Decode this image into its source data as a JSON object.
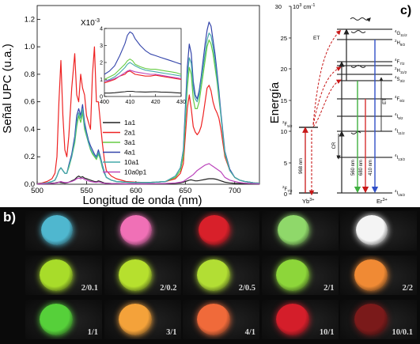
{
  "figure": {
    "panel_a": {
      "label": "a)",
      "ylabel": "Señal UPC (u.a.)",
      "xlabel": "Longitud de onda (nm)",
      "inset_multiplier": "X10",
      "inset_exponent": "-3"
    },
    "panel_b": {
      "label": "b)",
      "grid": [
        [
          {
            "ratio": "",
            "color": "#4fb7cf"
          },
          {
            "ratio": "",
            "color": "#f070b6"
          },
          {
            "ratio": "",
            "color": "#d8202a"
          },
          {
            "ratio": "",
            "color": "#8fd86a"
          },
          {
            "ratio": "",
            "color": "#f4f4f4"
          }
        ],
        [
          {
            "ratio": "2/0.1",
            "color": "#a8dc2a"
          },
          {
            "ratio": "2/0.2",
            "color": "#b6e02e"
          },
          {
            "ratio": "2/0.5",
            "color": "#b2de34"
          },
          {
            "ratio": "2/1",
            "color": "#8dd63a"
          },
          {
            "ratio": "2/2",
            "color": "#f08a34"
          }
        ],
        [
          {
            "ratio": "1/1",
            "color": "#56d03a"
          },
          {
            "ratio": "3/1",
            "color": "#f4a23a"
          },
          {
            "ratio": "4/1",
            "color": "#f06a3a"
          },
          {
            "ratio": "10/1",
            "color": "#d41e2a"
          },
          {
            "ratio": "10/0.1",
            "color": "#7a1a1a"
          }
        ]
      ]
    },
    "panel_c": {
      "label": "c)",
      "ylabel": "Energía",
      "unit_prefix": "10",
      "unit_exp": "3",
      "unit_suffix": " cm",
      "unit_suffix_exp": "-1",
      "yb_label": "Yb",
      "yb_sup": "3+",
      "er_label": "Er",
      "er_sup": "3+",
      "et_top": "ET",
      "et_side": "ET",
      "cr": "CR",
      "pump_nm": "968 nm",
      "em_560": "560 nm",
      "em_680": "680 nm",
      "em_410": "410 nm",
      "yb_levels": [
        {
          "name": "F",
          "sup": "2",
          "sub": "5/2"
        },
        {
          "name": "F",
          "sup": "2",
          "sub": "7/2"
        }
      ],
      "er_levels": [
        {
          "name": "G",
          "sup": "4",
          "sub": "11/2"
        },
        {
          "name": "H",
          "sup": "2",
          "sub": "9/2"
        },
        {
          "name": "F",
          "sup": "4",
          "sub": "7/2"
        },
        {
          "name": "H",
          "sup": "2",
          "sub": "11/2"
        },
        {
          "name": "S",
          "sup": "4",
          "sub": "3/2"
        },
        {
          "name": "F",
          "sup": "4",
          "sub": "9/2"
        },
        {
          "name": "I",
          "sup": "4",
          "sub": "9/2"
        },
        {
          "name": "I",
          "sup": "4",
          "sub": "11/2"
        },
        {
          "name": "I",
          "sup": "4",
          "sub": "13/2"
        },
        {
          "name": "I",
          "sup": "4",
          "sub": "15/2"
        }
      ]
    }
  },
  "chart_data": [
    {
      "type": "line",
      "title": "",
      "xlabel": "Longitud de onda (nm)",
      "ylabel": "Señal UPC (u.a.)",
      "xlim": [
        500,
        725
      ],
      "ylim": [
        0,
        1.3
      ],
      "xticks": [
        "500",
        "550",
        "600",
        "650",
        "700"
      ],
      "yticks": [
        "0.0",
        "0.2",
        "0.4",
        "0.6",
        "0.8",
        "1.0",
        "1.2"
      ],
      "legend_position": "right",
      "x": [
        500,
        505,
        510,
        515,
        518,
        520,
        522,
        524,
        526,
        528,
        530,
        532,
        535,
        538,
        540,
        542,
        544,
        546,
        548,
        550,
        552,
        554,
        556,
        558,
        560,
        562,
        564,
        566,
        568,
        570,
        575,
        580,
        590,
        600,
        610,
        620,
        630,
        640,
        645,
        648,
        650,
        652,
        654,
        656,
        658,
        660,
        662,
        664,
        666,
        668,
        670,
        672,
        674,
        676,
        678,
        680,
        682,
        684,
        686,
        688,
        690,
        695,
        700,
        705,
        710,
        715,
        720,
        725
      ],
      "series": [
        {
          "name": "1a1",
          "color": "#222222",
          "values": [
            0.003,
            0.004,
            0.005,
            0.008,
            0.01,
            0.012,
            0.015,
            0.012,
            0.01,
            0.008,
            0.01,
            0.015,
            0.025,
            0.035,
            0.05,
            0.06,
            0.05,
            0.055,
            0.045,
            0.04,
            0.035,
            0.03,
            0.025,
            0.02,
            0.018,
            0.025,
            0.02,
            0.015,
            0.01,
            0.008,
            0.006,
            0.005,
            0.004,
            0.004,
            0.004,
            0.004,
            0.005,
            0.007,
            0.01,
            0.015,
            0.02,
            0.025,
            0.03,
            0.032,
            0.028,
            0.025,
            0.025,
            0.027,
            0.03,
            0.032,
            0.035,
            0.038,
            0.04,
            0.04,
            0.04,
            0.038,
            0.035,
            0.03,
            0.025,
            0.02,
            0.015,
            0.01,
            0.007,
            0.005,
            0.004,
            0.003,
            0.003,
            0.002
          ]
        },
        {
          "name": "2a1",
          "color": "#ee2222",
          "values": [
            0.005,
            0.01,
            0.02,
            0.04,
            0.08,
            0.2,
            0.6,
            0.9,
            0.5,
            0.25,
            0.2,
            0.35,
            0.7,
            0.95,
            0.65,
            0.6,
            0.8,
            0.7,
            0.65,
            0.5,
            0.45,
            0.4,
            0.8,
            1.0,
            0.6,
            0.6,
            0.45,
            0.3,
            0.18,
            0.1,
            0.06,
            0.04,
            0.02,
            0.015,
            0.012,
            0.015,
            0.02,
            0.04,
            0.08,
            0.15,
            0.35,
            0.55,
            0.65,
            0.55,
            0.42,
            0.38,
            0.36,
            0.38,
            0.42,
            0.5,
            0.6,
            0.7,
            0.72,
            0.68,
            0.6,
            0.55,
            0.52,
            0.48,
            0.4,
            0.3,
            0.2,
            0.1,
            0.05,
            0.03,
            0.02,
            0.015,
            0.01,
            0.008
          ]
        },
        {
          "name": "3a1",
          "color": "#66cc44",
          "values": [
            0.003,
            0.006,
            0.01,
            0.02,
            0.03,
            0.06,
            0.1,
            0.12,
            0.1,
            0.08,
            0.08,
            0.12,
            0.2,
            0.3,
            0.42,
            0.5,
            0.45,
            0.52,
            0.4,
            0.35,
            0.3,
            0.25,
            0.22,
            0.2,
            0.18,
            0.22,
            0.18,
            0.12,
            0.08,
            0.05,
            0.03,
            0.02,
            0.015,
            0.012,
            0.012,
            0.015,
            0.02,
            0.05,
            0.1,
            0.2,
            0.45,
            0.7,
            0.85,
            0.8,
            0.62,
            0.55,
            0.55,
            0.6,
            0.7,
            0.8,
            0.9,
            1.0,
            1.05,
            1.02,
            0.95,
            0.85,
            0.75,
            0.62,
            0.5,
            0.35,
            0.22,
            0.1,
            0.05,
            0.03,
            0.02,
            0.015,
            0.01,
            0.008
          ]
        },
        {
          "name": "4a1",
          "color": "#3344aa",
          "values": [
            0.003,
            0.006,
            0.01,
            0.02,
            0.03,
            0.06,
            0.1,
            0.12,
            0.1,
            0.08,
            0.08,
            0.14,
            0.22,
            0.35,
            0.5,
            0.55,
            0.5,
            0.58,
            0.45,
            0.38,
            0.32,
            0.28,
            0.25,
            0.22,
            0.2,
            0.25,
            0.2,
            0.14,
            0.09,
            0.05,
            0.03,
            0.02,
            0.015,
            0.012,
            0.012,
            0.015,
            0.02,
            0.06,
            0.12,
            0.25,
            0.55,
            0.85,
            1.02,
            0.95,
            0.75,
            0.65,
            0.62,
            0.68,
            0.78,
            0.9,
            1.02,
            1.12,
            1.18,
            1.15,
            1.05,
            0.95,
            0.82,
            0.68,
            0.52,
            0.38,
            0.24,
            0.11,
            0.05,
            0.03,
            0.02,
            0.015,
            0.01,
            0.008
          ]
        },
        {
          "name": "10a1",
          "color": "#44aaaa",
          "values": [
            0.003,
            0.006,
            0.01,
            0.02,
            0.03,
            0.06,
            0.1,
            0.12,
            0.1,
            0.08,
            0.08,
            0.13,
            0.2,
            0.32,
            0.45,
            0.52,
            0.48,
            0.55,
            0.42,
            0.36,
            0.3,
            0.26,
            0.23,
            0.21,
            0.19,
            0.23,
            0.19,
            0.13,
            0.08,
            0.05,
            0.03,
            0.02,
            0.015,
            0.012,
            0.012,
            0.015,
            0.02,
            0.06,
            0.12,
            0.24,
            0.5,
            0.78,
            0.92,
            0.88,
            0.7,
            0.62,
            0.6,
            0.65,
            0.75,
            0.85,
            0.95,
            1.05,
            1.1,
            1.08,
            1.0,
            0.9,
            0.78,
            0.65,
            0.5,
            0.36,
            0.23,
            0.1,
            0.05,
            0.03,
            0.02,
            0.015,
            0.01,
            0.008
          ]
        },
        {
          "name": "10a0p1",
          "color": "#bb44bb",
          "values": [
            0.002,
            0.003,
            0.004,
            0.006,
            0.008,
            0.01,
            0.015,
            0.02,
            0.015,
            0.012,
            0.012,
            0.015,
            0.02,
            0.03,
            0.04,
            0.045,
            0.04,
            0.045,
            0.035,
            0.03,
            0.025,
            0.02,
            0.018,
            0.015,
            0.014,
            0.018,
            0.015,
            0.01,
            0.008,
            0.006,
            0.005,
            0.004,
            0.003,
            0.003,
            0.003,
            0.004,
            0.006,
            0.01,
            0.015,
            0.02,
            0.03,
            0.04,
            0.05,
            0.06,
            0.07,
            0.085,
            0.1,
            0.11,
            0.12,
            0.13,
            0.14,
            0.145,
            0.15,
            0.14,
            0.13,
            0.12,
            0.11,
            0.1,
            0.09,
            0.07,
            0.05,
            0.03,
            0.02,
            0.012,
            0.008,
            0.006,
            0.004,
            0.003
          ]
        }
      ]
    },
    {
      "type": "line",
      "title": "",
      "xlabel": "",
      "ylabel": "",
      "xlim": [
        400,
        430
      ],
      "ylim": [
        0,
        4
      ],
      "xticks": [
        "400",
        "410",
        "420",
        "430"
      ],
      "yticks": [
        "0",
        "1",
        "2",
        "3",
        "4"
      ],
      "x": [
        400,
        402,
        404,
        406,
        408,
        409,
        410,
        411,
        412,
        414,
        416,
        418,
        420,
        422,
        424,
        426,
        428,
        430
      ],
      "series": [
        {
          "name": "1a1",
          "color": "#222222",
          "values": [
            0.2,
            0.2,
            0.22,
            0.25,
            0.28,
            0.3,
            0.3,
            0.3,
            0.28,
            0.27,
            0.26,
            0.27,
            0.28,
            0.26,
            0.25,
            0.24,
            0.22,
            0.2
          ]
        },
        {
          "name": "2a1",
          "color": "#ee2222",
          "values": [
            0.8,
            0.9,
            1.0,
            1.2,
            1.3,
            1.45,
            1.5,
            1.4,
            1.3,
            1.25,
            1.2,
            1.2,
            1.25,
            1.2,
            1.15,
            1.1,
            1.05,
            1.0
          ]
        },
        {
          "name": "3a1",
          "color": "#66cc44",
          "values": [
            1.0,
            1.15,
            1.3,
            1.6,
            1.9,
            2.1,
            2.2,
            2.1,
            1.9,
            1.75,
            1.65,
            1.6,
            1.6,
            1.55,
            1.5,
            1.45,
            1.4,
            1.3
          ]
        },
        {
          "name": "4a1",
          "color": "#3344aa",
          "values": [
            1.3,
            1.5,
            1.8,
            2.4,
            3.1,
            3.6,
            3.8,
            3.7,
            3.4,
            3.0,
            2.7,
            2.5,
            2.4,
            2.3,
            2.2,
            2.1,
            2.0,
            1.9
          ]
        },
        {
          "name": "10a1",
          "color": "#44aaaa",
          "values": [
            0.9,
            1.0,
            1.15,
            1.4,
            1.7,
            1.9,
            2.0,
            1.9,
            1.8,
            1.65,
            1.55,
            1.5,
            1.45,
            1.4,
            1.35,
            1.3,
            1.25,
            1.2
          ]
        },
        {
          "name": "10a0p1",
          "color": "#bb44bb",
          "values": [
            0.9,
            0.95,
            1.05,
            1.2,
            1.4,
            1.5,
            1.55,
            1.5,
            1.45,
            1.4,
            1.35,
            1.3,
            1.3,
            1.25,
            1.2,
            1.15,
            1.1,
            1.05
          ]
        }
      ]
    }
  ]
}
